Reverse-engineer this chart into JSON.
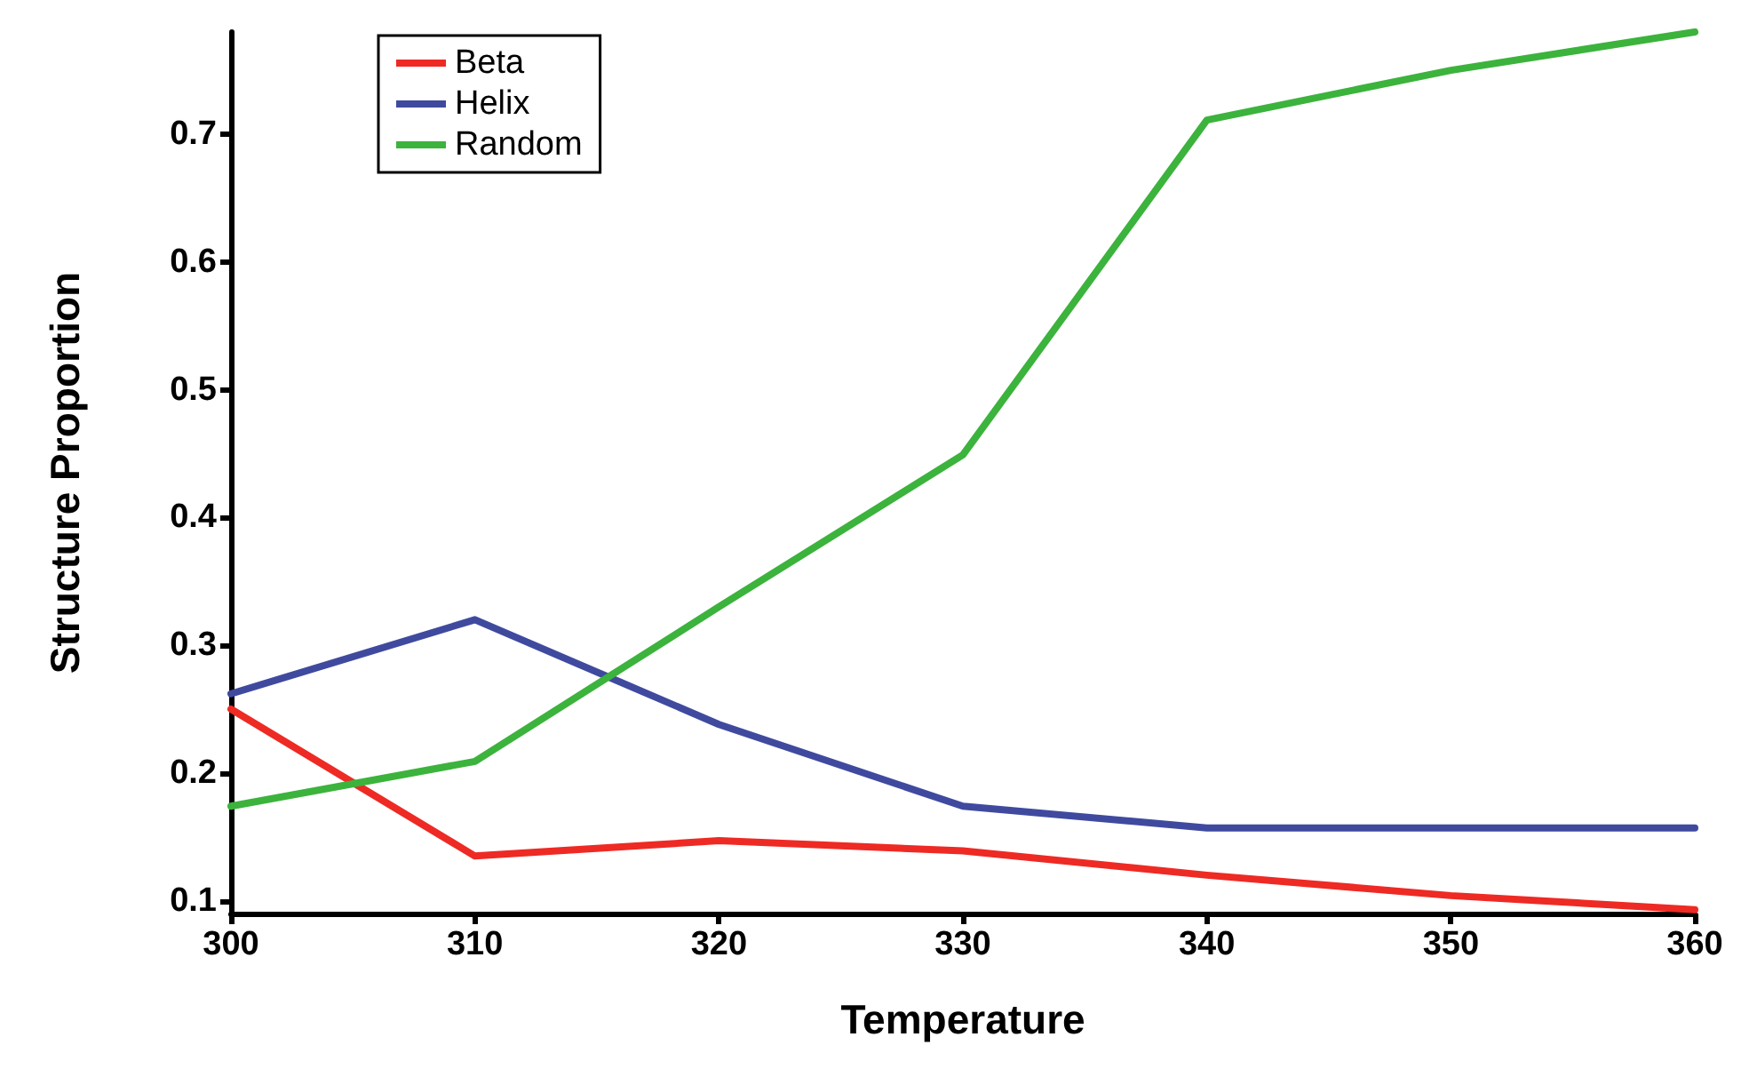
{
  "chart_data": {
    "type": "line",
    "xlabel": "Temperature",
    "ylabel": "Structure Proportion",
    "x": [
      300,
      310,
      320,
      330,
      340,
      350,
      360
    ],
    "series": [
      {
        "name": "Beta",
        "color": "#ee2a24",
        "values": [
          0.25,
          0.135,
          0.147,
          0.139,
          0.12,
          0.104,
          0.093
        ]
      },
      {
        "name": "Helix",
        "color": "#3f4a9f",
        "values": [
          0.262,
          0.32,
          0.238,
          0.174,
          0.157,
          0.157,
          0.157
        ]
      },
      {
        "name": "Random",
        "color": "#3cb33c",
        "values": [
          0.174,
          0.209,
          0.33,
          0.449,
          0.711,
          0.75,
          0.78
        ]
      }
    ],
    "xlim": [
      300,
      360
    ],
    "xticks": [
      300,
      310,
      320,
      330,
      340,
      350,
      360
    ],
    "ylim": [
      0.09,
      0.78
    ],
    "yticks": [
      0.1,
      0.2,
      0.3,
      0.4,
      0.5,
      0.6,
      0.7
    ],
    "grid": false,
    "legend": "top left",
    "marker": "none",
    "line_style": "solid"
  }
}
